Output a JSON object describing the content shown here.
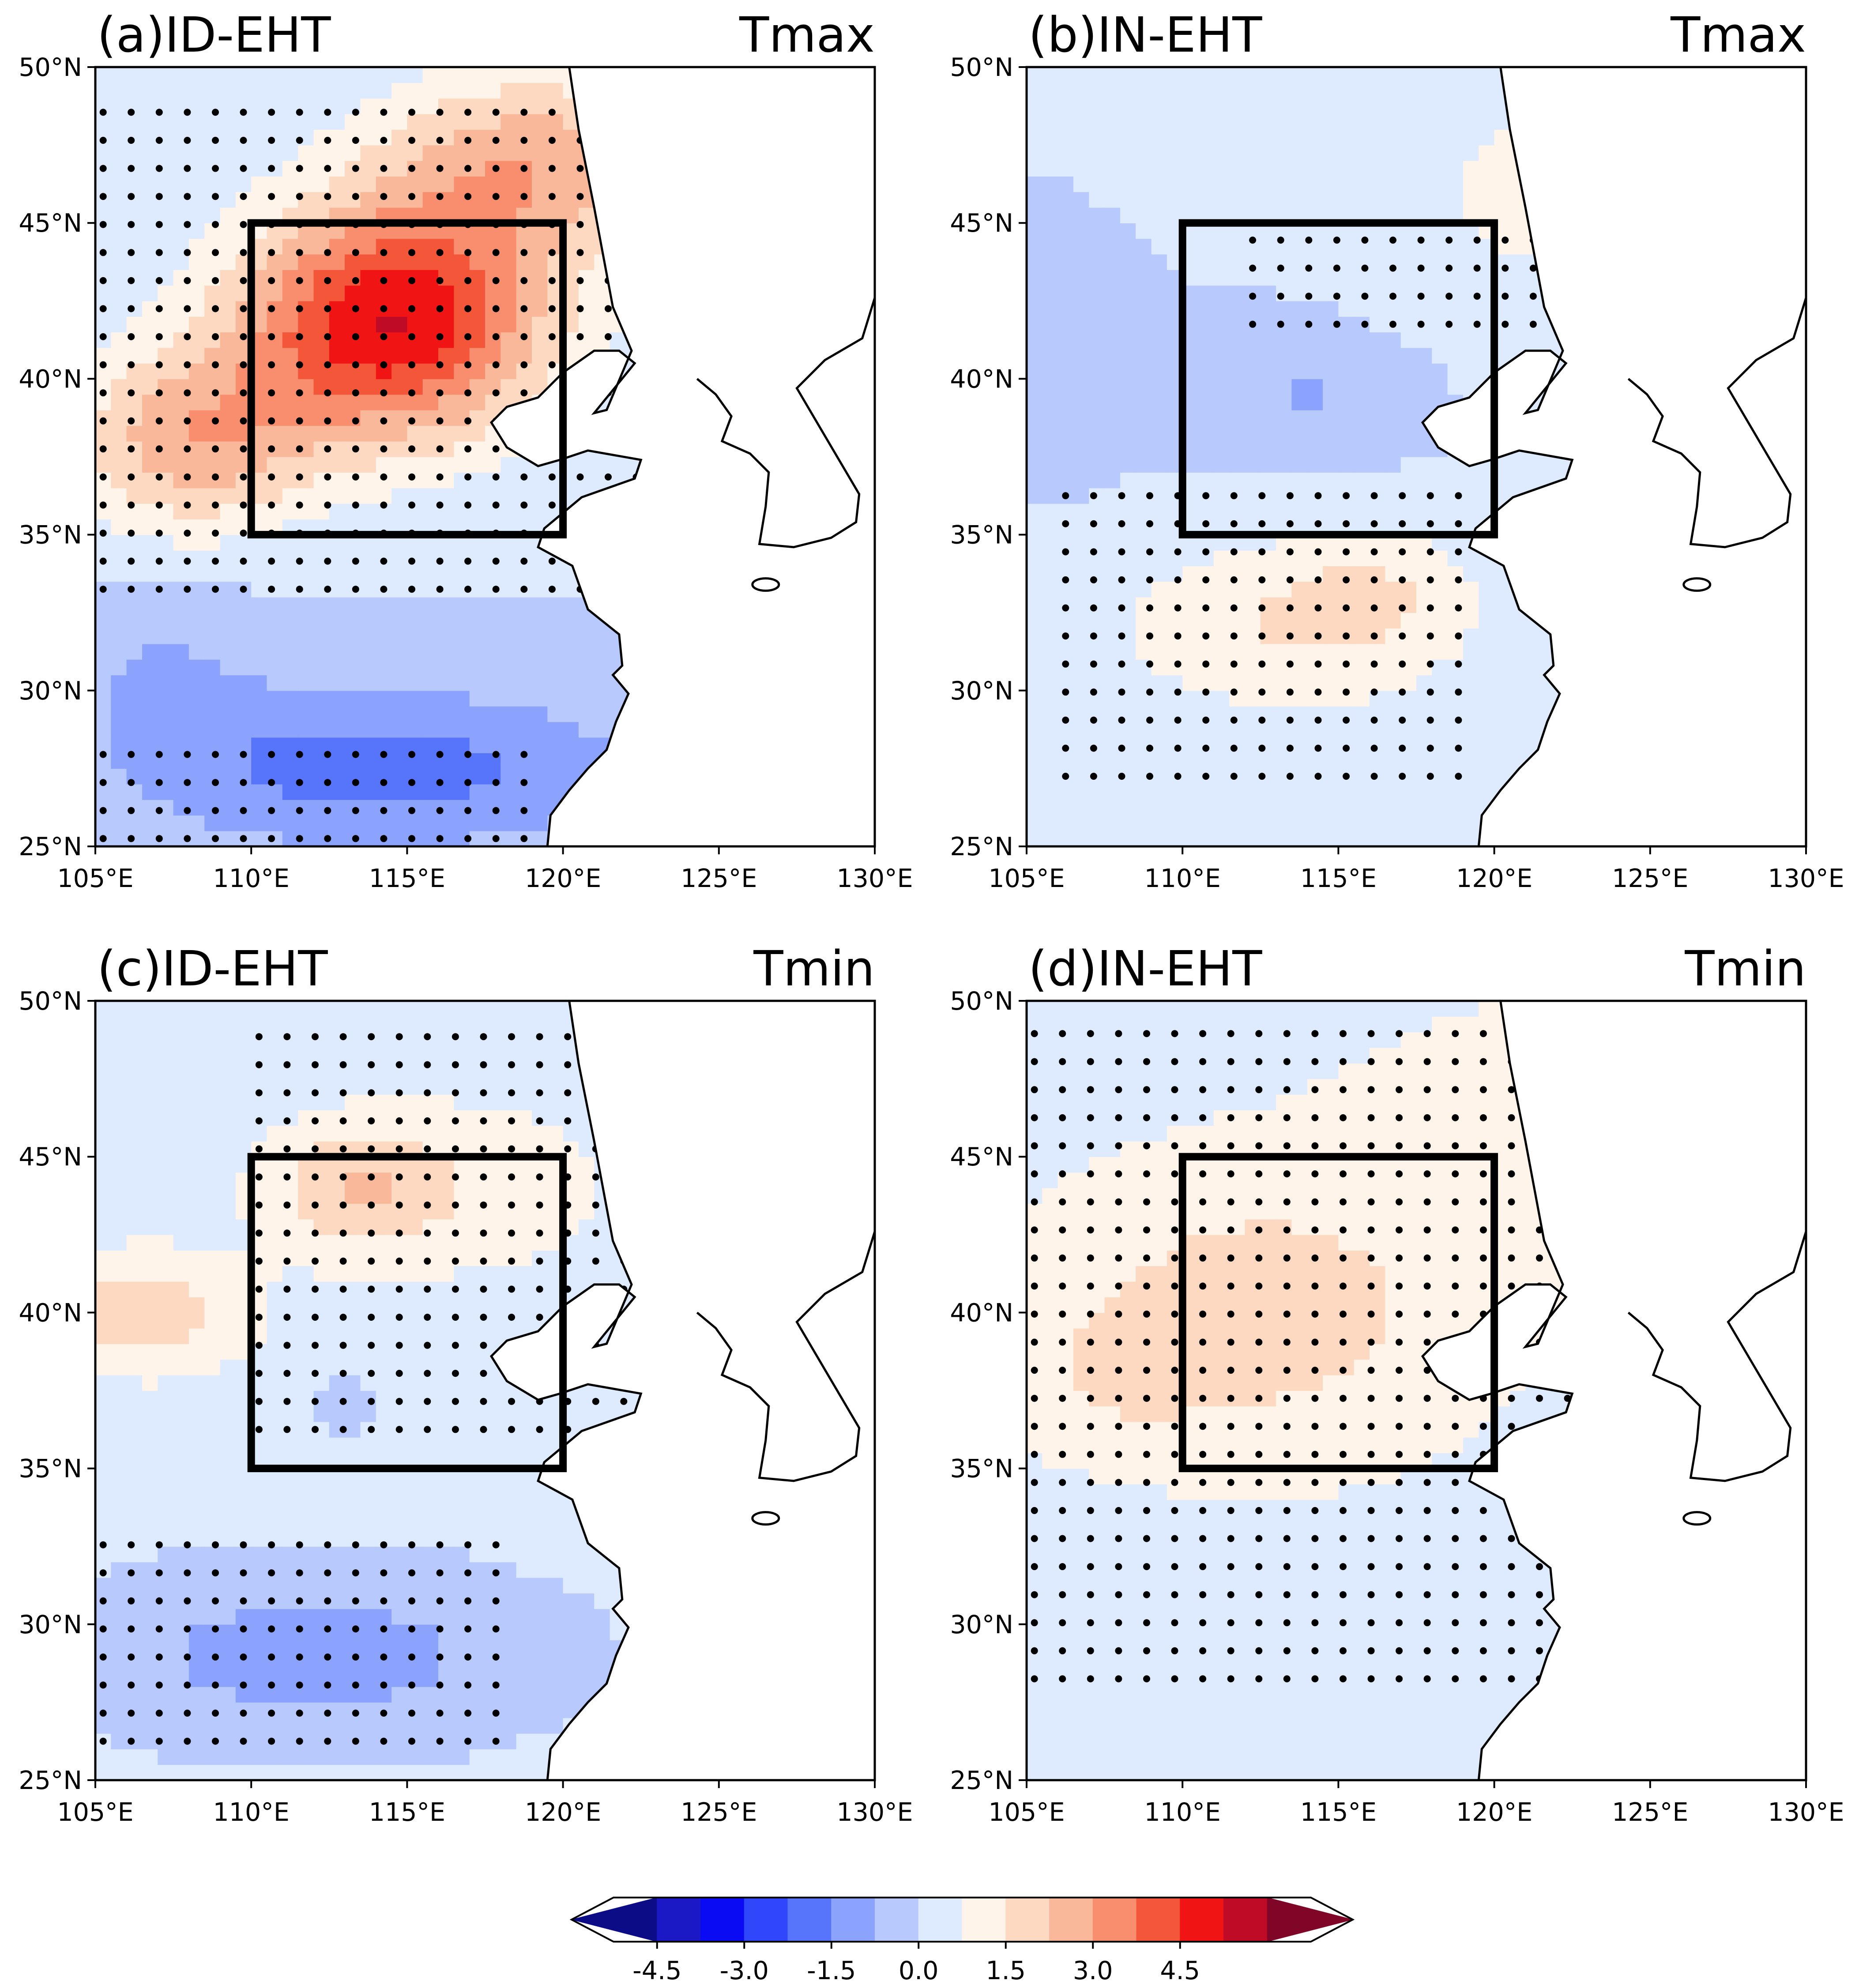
{
  "figure": {
    "colorbar": {
      "min": -5.25,
      "max": 5.25,
      "step": 0.75,
      "tick_values": [
        -4.5,
        -3.0,
        -1.5,
        0.0,
        1.5,
        3.0,
        4.5
      ],
      "tick_labels": [
        "-4.5",
        "-3.0",
        "-1.5",
        "0.0",
        "1.5",
        "3.0",
        "4.5"
      ],
      "colors": [
        "#0d0c87",
        "#1b19c5",
        "#0b0bf3",
        "#2f46fb",
        "#5775fa",
        "#8ba3fc",
        "#b7c9fd",
        "#deeafd",
        "#fef4ea",
        "#fcd9c0",
        "#fab89a",
        "#f88e6e",
        "#f4563a",
        "#f01414",
        "#bf0b25",
        "#7f0626"
      ],
      "extend": "both"
    },
    "axes": {
      "lon_range": [
        105,
        130
      ],
      "lat_range": [
        25,
        50
      ],
      "xtick_values": [
        105,
        110,
        115,
        120,
        125,
        130
      ],
      "xtick_labels": [
        "105°E",
        "110°E",
        "115°E",
        "120°E",
        "125°E",
        "130°E"
      ],
      "ytick_values": [
        25,
        30,
        35,
        40,
        45,
        50
      ],
      "ytick_labels": [
        "25°N",
        "30°N",
        "35°N",
        "40°N",
        "45°N",
        "50°N"
      ],
      "box": {
        "lon": [
          110,
          120
        ],
        "lat": [
          35,
          45
        ]
      }
    },
    "panels": [
      {
        "id": "a",
        "title_left": "(a)ID-EHT",
        "title_right": "Tmax",
        "field": {
          "base": 0.0,
          "blobs": [
            {
              "lon": 114.5,
              "lat": 41.8,
              "sx": 5.0,
              "sy": 3.8,
              "amp": 5.2
            },
            {
              "lon": 108.0,
              "lat": 38.0,
              "sx": 4.0,
              "sy": 3.0,
              "amp": 2.6
            },
            {
              "lon": 119.0,
              "lat": 47.0,
              "sx": 5.0,
              "sy": 3.0,
              "amp": 2.6
            },
            {
              "lon": 127.0,
              "lat": 46.0,
              "sx": 4.0,
              "sy": 4.0,
              "amp": 1.0
            },
            {
              "lon": 114.0,
              "lat": 27.5,
              "sx": 8.0,
              "sy": 2.5,
              "amp": -1.9
            },
            {
              "lon": 107.0,
              "lat": 31.0,
              "sx": 4.0,
              "sy": 2.5,
              "amp": -0.7
            }
          ]
        },
        "stipple": [
          {
            "lon": [
              105,
              126
            ],
            "lat": [
              33,
              49
            ]
          },
          {
            "lon": [
              105,
              119
            ],
            "lat": [
              25,
              28.5
            ]
          }
        ]
      },
      {
        "id": "b",
        "title_left": "(b)IN-EHT",
        "title_right": "Tmax",
        "field": {
          "base": 0.0,
          "blobs": [
            {
              "lon": 113.5,
              "lat": 32.0,
              "sx": 6.0,
              "sy": 3.0,
              "amp": 1.5
            },
            {
              "lon": 122.0,
              "lat": 46.0,
              "sx": 6.0,
              "sy": 4.0,
              "amp": 1.0
            },
            {
              "lon": 116.5,
              "lat": 33.5,
              "sx": 3.0,
              "sy": 2.0,
              "amp": 0.7
            },
            {
              "lon": 114.0,
              "lat": 39.5,
              "sx": 3.0,
              "sy": 2.0,
              "amp": -0.8
            },
            {
              "lon": 106.0,
              "lat": 40.0,
              "sx": 2.5,
              "sy": 2.5,
              "amp": -0.6
            }
          ]
        },
        "stipple": [
          {
            "lon": [
              106,
              119
            ],
            "lat": [
              27,
              37
            ]
          },
          {
            "lon": [
              112,
              130
            ],
            "lat": [
              41.5,
              45
            ]
          }
        ]
      },
      {
        "id": "c",
        "title_left": "(c)ID-EHT",
        "title_right": "Tmin",
        "field": {
          "base": 0.3,
          "blobs": [
            {
              "lon": 113.5,
              "lat": 44.0,
              "sx": 3.0,
              "sy": 2.0,
              "amp": 1.8
            },
            {
              "lon": 106.5,
              "lat": 40.0,
              "sx": 3.5,
              "sy": 2.0,
              "amp": 1.6
            },
            {
              "lon": 118.0,
              "lat": 44.0,
              "sx": 6.0,
              "sy": 4.0,
              "amp": 0.6
            },
            {
              "lon": 112.0,
              "lat": 29.0,
              "sx": 8.0,
              "sy": 3.0,
              "amp": -1.4
            },
            {
              "lon": 113.0,
              "lat": 37.2,
              "sx": 1.2,
              "sy": 1.2,
              "amp": -0.6
            }
          ]
        },
        "stipple": [
          {
            "lon": [
              110,
              129
            ],
            "lat": [
              36,
              49
            ]
          },
          {
            "lon": [
              105,
              118
            ],
            "lat": [
              26,
              33
            ]
          }
        ]
      },
      {
        "id": "d",
        "title_left": "(d)IN-EHT",
        "title_right": "Tmin",
        "field": {
          "base": 0.6,
          "blobs": [
            {
              "lon": 112.5,
              "lat": 40.0,
              "sx": 6.0,
              "sy": 4.0,
              "amp": 1.4
            },
            {
              "lon": 108.0,
              "lat": 38.0,
              "sx": 3.0,
              "sy": 2.0,
              "amp": 0.7
            },
            {
              "lon": 122.0,
              "lat": 46.0,
              "sx": 7.0,
              "sy": 4.0,
              "amp": 0.4
            },
            {
              "lon": 113.0,
              "lat": 26.0,
              "sx": 5.0,
              "sy": 1.5,
              "amp": -0.6
            }
          ]
        },
        "stipple": [
          {
            "lon": [
              105,
              129
            ],
            "lat": [
              28,
              49
            ]
          }
        ]
      }
    ]
  }
}
